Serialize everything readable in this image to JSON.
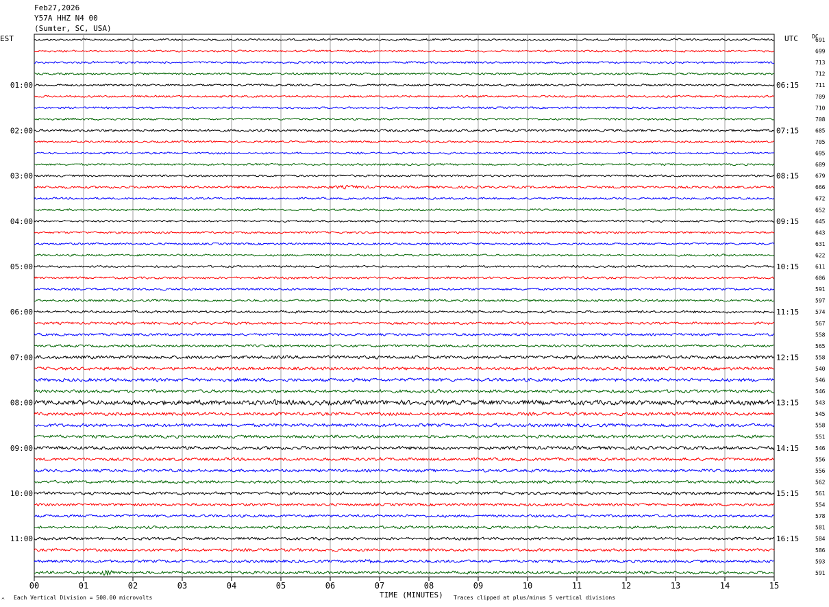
{
  "header": {
    "date": "Feb27,2026",
    "station": "Y57A HHZ N4 00",
    "location": "(Sumter, SC, USA)"
  },
  "labels": {
    "left_tz": "EST",
    "right_tz": "UTC",
    "dc": "DC",
    "xlabel": "TIME (MINUTES)",
    "scale_note": "Each Vertical Division =  500.00 microvolts",
    "clip_note": "Traces clipped at plus/minus 5 vertical divisions",
    "corner_mark": "^"
  },
  "chart_data": {
    "type": "line",
    "x_ticks": [
      "00",
      "01",
      "02",
      "03",
      "04",
      "05",
      "06",
      "07",
      "08",
      "09",
      "10",
      "11",
      "12",
      "13",
      "14",
      "15"
    ],
    "xlim": [
      0,
      15
    ],
    "trace_colors": [
      "#000000",
      "#ff0000",
      "#0000ff",
      "#006400"
    ],
    "left_hour_labels": [
      "01:00",
      "02:00",
      "03:00",
      "04:00",
      "05:00",
      "06:00",
      "07:00",
      "08:00",
      "09:00",
      "10:00",
      "11:00"
    ],
    "right_hour_labels": [
      "06:15",
      "07:15",
      "08:15",
      "09:15",
      "10:15",
      "11:15",
      "12:15",
      "13:15",
      "14:15",
      "15:15",
      "16:15"
    ],
    "dc_offsets": [
      "691",
      "699",
      "713",
      "712",
      "711",
      "709",
      "710",
      "708",
      "685",
      "705",
      "695",
      "689",
      "679",
      "666",
      "672",
      "652",
      "645",
      "643",
      "631",
      "622",
      "611",
      "606",
      "591",
      "597",
      "574",
      "567",
      "558",
      "565",
      "558",
      "540",
      "546",
      "546",
      "543",
      "545",
      "558",
      "551",
      "546",
      "556",
      "556",
      "562",
      "561",
      "554",
      "578",
      "581",
      "584",
      "586",
      "593",
      "591"
    ],
    "trace_noise": [
      1,
      1,
      1,
      1,
      1,
      1,
      1,
      1,
      1.2,
      1,
      1,
      1,
      1,
      1.2,
      1,
      1,
      1,
      1,
      1,
      1,
      1,
      1.1,
      1.1,
      1.1,
      1.2,
      1.2,
      1.2,
      1.2,
      1.6,
      1.5,
      1.6,
      1.5,
      2.3,
      1.6,
      1.6,
      1.5,
      1.6,
      1.5,
      1.4,
      1.4,
      1.4,
      1.3,
      1.3,
      1.3,
      1.3,
      1.4,
      1.4,
      1.4
    ],
    "events": [
      {
        "trace": 8,
        "start_min": 0.3,
        "end_min": 2.3,
        "amp": 1.8
      },
      {
        "trace": 13,
        "start_min": 5.5,
        "end_min": 7.2,
        "amp": 3.2
      },
      {
        "trace": 32,
        "start_min": 1.0,
        "end_min": 6.0,
        "amp": 4.0
      },
      {
        "trace": 32,
        "start_min": 4.8,
        "end_min": 5.0,
        "amp": 6.0
      },
      {
        "trace": 34,
        "start_min": 9.3,
        "end_min": 9.5,
        "amp": 4.0
      },
      {
        "trace": 36,
        "start_min": 11.3,
        "end_min": 11.5,
        "amp": 3.5
      },
      {
        "trace": 46,
        "start_min": 6.6,
        "end_min": 6.9,
        "amp": 5.5
      },
      {
        "trace": 47,
        "start_min": 1.3,
        "end_min": 1.6,
        "amp": 8.0
      }
    ]
  }
}
